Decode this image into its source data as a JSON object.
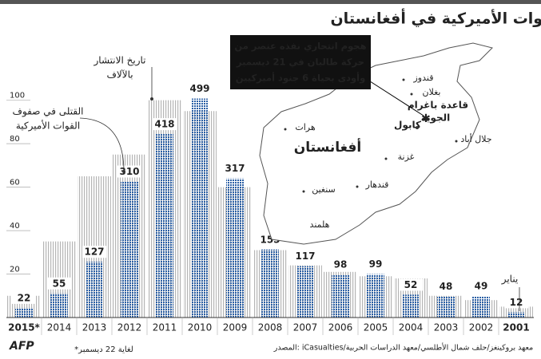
{
  "chart_data": {
    "type": "bar",
    "title": "القوات الأميركية في أفغانستان",
    "categories": [
      "2015*",
      "2014",
      "2013",
      "2012",
      "2011",
      "2010",
      "2009",
      "2008",
      "2007",
      "2006",
      "2005",
      "2004",
      "2003",
      "2002",
      "2001"
    ],
    "series": [
      {
        "name": [
          "تاريخ الانتشار",
          "بالآلاف"
        ],
        "color": "#b5b5b5",
        "values": [
          10,
          35,
          65,
          75,
          100,
          95,
          60,
          31,
          24,
          21,
          19,
          18,
          10,
          8,
          5
        ]
      },
      {
        "name": [
          "القتلى في صفوف",
          "القوات الأميركية"
        ],
        "color": "#2a5fa5",
        "axis": "y2",
        "values": [
          22,
          55,
          127,
          310,
          418,
          499,
          317,
          155,
          117,
          98,
          99,
          52,
          48,
          49,
          12
        ]
      }
    ],
    "ylim": [
      0,
      105
    ],
    "yticks": [
      20,
      40,
      60,
      80,
      100
    ],
    "y2lim": [
      0,
      520
    ],
    "grid": false,
    "annotation": "يناير",
    "map": {
      "country": "أفغانستان",
      "cities": [
        "قندوز",
        "بغلان",
        "قاعدة باغرام",
        "الجوية",
        "كابول",
        "جلال أباد",
        "هرات",
        "غزنة",
        "قندهار",
        "سنغين",
        "هلمند"
      ],
      "callout": [
        "هجوم انتحاري نفذه عنصر من",
        "حركة طالبان في 21 ديسمبر",
        "وأودى بحياة 6 جنود أميركيين"
      ]
    },
    "note": "*لغاية 22 ديسمبر",
    "source": "المصدر: iCasualties/معهد بروكينغز/حلف شمال الأطلسي/معهد الدراسات الحربية",
    "logo": "AFP"
  }
}
